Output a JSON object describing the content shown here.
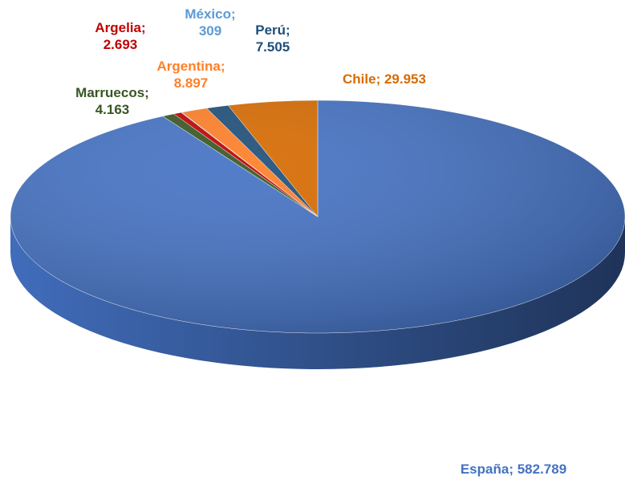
{
  "chart_data": {
    "type": "pie3d",
    "values": [
      582789,
      4163,
      2693,
      309,
      8897,
      7505,
      29953
    ],
    "value_labels": [
      "España;  582.789",
      "Marruecos; 4.163",
      "Argelia; 2.693",
      "México; 309",
      "Argentina; 8.897",
      "Perú; 7.505",
      "Chile;  29.953"
    ],
    "colors": [
      "#4472c4",
      "#375623",
      "#c00000",
      "#5b9bd5",
      "#ff7f27",
      "#1f4e79",
      "#d86b00"
    ]
  }
}
